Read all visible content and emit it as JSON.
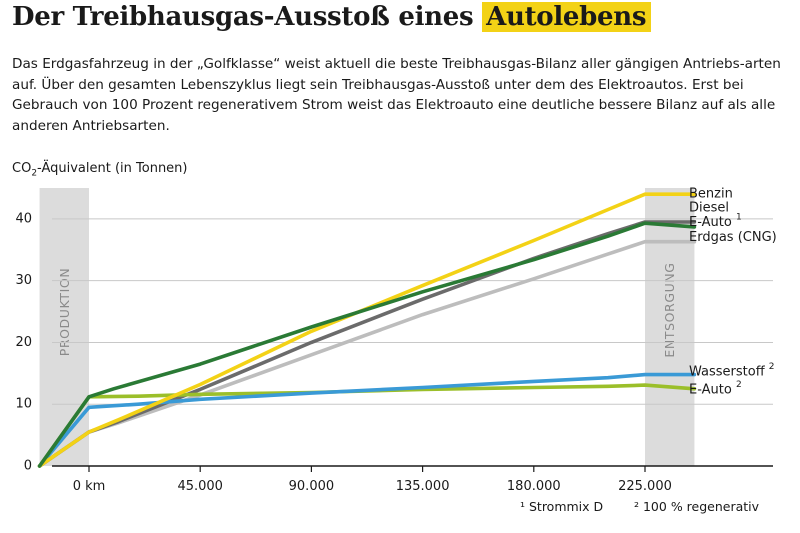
{
  "header": {
    "title_main": "Der Treibhausgas-Ausstoß eines",
    "title_highlight": "Autolebens",
    "intro": "Das Erdgasfahrzeug in der „Golfklasse“ weist aktuell die beste Treibhausgas-Bilanz aller gängigen Antriebs-arten auf. Über den gesamten Lebenszyklus liegt sein Treibhausgas-Ausstoß unter dem des Elektroautos. Erst bei Gebrauch von 100 Prozent regenerativem Strom weist das Elektroauto eine deutliche bessere Bilanz auf als alle anderen Antriebsarten."
  },
  "footnotes": {
    "note1": "¹ Strommix D",
    "note2": "² 100 % regenerativ"
  },
  "chart_data": {
    "type": "line",
    "ylabel_pre": "CO",
    "ylabel_sub": "2",
    "ylabel_post": "-Äquivalent (in Tonnen)",
    "xlabel": "",
    "xlim": [
      -20000,
      245000
    ],
    "ylim": [
      0,
      45
    ],
    "yticks": [
      0,
      10,
      20,
      30,
      40
    ],
    "xticks": [
      0,
      45000,
      90000,
      135000,
      180000,
      225000
    ],
    "xtick_labels": [
      "0 km",
      "45.000",
      "90.000",
      "135.000",
      "180.000",
      "225.000"
    ],
    "grid": "horizontal",
    "phase_bands": [
      {
        "label": "PRODUKTION",
        "from": -20000,
        "to": 0
      },
      {
        "label": "ENTSORGUNG",
        "from": 225000,
        "to": 245000
      }
    ],
    "series": [
      {
        "name": "Benzin",
        "color": "#f3d216",
        "label_y": 44,
        "points": [
          [
            -20000,
            0
          ],
          [
            0,
            5.5
          ],
          [
            12000,
            7.5
          ],
          [
            45000,
            13.2
          ],
          [
            90000,
            21.8
          ],
          [
            135000,
            29.2
          ],
          [
            180000,
            36.5
          ],
          [
            210000,
            41.5
          ],
          [
            225000,
            44
          ],
          [
            245000,
            44
          ]
        ]
      },
      {
        "name": "Diesel",
        "color": "#6b6b6b",
        "label_y": 41.8,
        "points": [
          [
            -20000,
            0
          ],
          [
            0,
            5.5
          ],
          [
            12000,
            7.2
          ],
          [
            45000,
            12.4
          ],
          [
            90000,
            20
          ],
          [
            135000,
            27
          ],
          [
            180000,
            33.6
          ],
          [
            210000,
            37.6
          ],
          [
            225000,
            39.5
          ],
          [
            245000,
            39.5
          ]
        ]
      },
      {
        "name": "E-Auto",
        "name_sup": "1",
        "color": "#2a7a35",
        "label_y": 39.4,
        "points": [
          [
            -20000,
            0
          ],
          [
            0,
            11.2
          ],
          [
            10000,
            12.5
          ],
          [
            45000,
            16.5
          ],
          [
            90000,
            22.5
          ],
          [
            135000,
            28.2
          ],
          [
            180000,
            33.4
          ],
          [
            210000,
            37.2
          ],
          [
            225000,
            39.3
          ],
          [
            245000,
            38.7
          ]
        ]
      },
      {
        "name": "Erdgas (CNG)",
        "color": "#bdbdbd",
        "label_y": 37,
        "points": [
          [
            -20000,
            0
          ],
          [
            0,
            5.5
          ],
          [
            12000,
            7
          ],
          [
            45000,
            11.5
          ],
          [
            90000,
            18
          ],
          [
            135000,
            24.5
          ],
          [
            180000,
            30.3
          ],
          [
            210000,
            34.3
          ],
          [
            225000,
            36.3
          ],
          [
            245000,
            36.3
          ]
        ]
      },
      {
        "name": "Wasserstoff",
        "name_sup": "2",
        "color": "#3a9ad6",
        "label_y": 15.2,
        "points": [
          [
            -20000,
            0
          ],
          [
            0,
            9.5
          ],
          [
            20000,
            10
          ],
          [
            45000,
            10.8
          ],
          [
            90000,
            11.8
          ],
          [
            135000,
            12.7
          ],
          [
            180000,
            13.7
          ],
          [
            210000,
            14.3
          ],
          [
            225000,
            14.8
          ],
          [
            245000,
            14.8
          ]
        ]
      },
      {
        "name": "E-Auto",
        "name_sup": "2",
        "color": "#9bbf2a",
        "label_y": 12.3,
        "points": [
          [
            -20000,
            0
          ],
          [
            0,
            11.2
          ],
          [
            20000,
            11.3
          ],
          [
            45000,
            11.6
          ],
          [
            90000,
            11.9
          ],
          [
            135000,
            12.4
          ],
          [
            180000,
            12.7
          ],
          [
            210000,
            12.9
          ],
          [
            225000,
            13.1
          ],
          [
            245000,
            12.5
          ]
        ]
      }
    ]
  }
}
